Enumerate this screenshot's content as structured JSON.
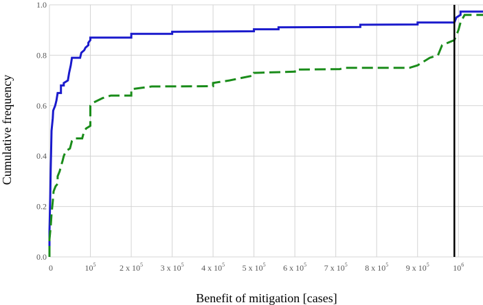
{
  "chart_data": {
    "type": "line",
    "title": "",
    "xlabel": "Benefit of mitigation [cases]",
    "ylabel": "Cumulative frequency",
    "xlim": [
      0,
      1060000
    ],
    "ylim": [
      0,
      1.0
    ],
    "x_scale": "linear",
    "grid": true,
    "legend": "none",
    "x_ticks": [
      {
        "value": 0,
        "coef": "",
        "base": "0",
        "exp": ""
      },
      {
        "value": 100000,
        "coef": "",
        "base": "10",
        "exp": "5"
      },
      {
        "value": 200000,
        "coef": "2 x ",
        "base": "10",
        "exp": "5"
      },
      {
        "value": 300000,
        "coef": "3 x ",
        "base": "10",
        "exp": "5"
      },
      {
        "value": 400000,
        "coef": "4 x ",
        "base": "10",
        "exp": "5"
      },
      {
        "value": 500000,
        "coef": "5 x ",
        "base": "10",
        "exp": "5"
      },
      {
        "value": 600000,
        "coef": "6 x ",
        "base": "10",
        "exp": "5"
      },
      {
        "value": 700000,
        "coef": "7 x ",
        "base": "10",
        "exp": "5"
      },
      {
        "value": 800000,
        "coef": "8 x ",
        "base": "10",
        "exp": "5"
      },
      {
        "value": 900000,
        "coef": "9 x ",
        "base": "10",
        "exp": "5"
      },
      {
        "value": 1000000,
        "coef": "",
        "base": "10",
        "exp": "6"
      }
    ],
    "y_ticks": [
      {
        "value": 0.0,
        "label": "0.0"
      },
      {
        "value": 0.2,
        "label": "0.2"
      },
      {
        "value": 0.4,
        "label": "0.4"
      },
      {
        "value": 0.6,
        "label": "0.6"
      },
      {
        "value": 0.8,
        "label": "0.8"
      },
      {
        "value": 1.0,
        "label": "1.0"
      }
    ],
    "vline": {
      "x": 990000,
      "color": "#000000"
    },
    "series": [
      {
        "color": "#1a1acc",
        "style": "solid",
        "points": [
          [
            0,
            0.0
          ],
          [
            0,
            0.1
          ],
          [
            2000,
            0.25
          ],
          [
            3000,
            0.35
          ],
          [
            4000,
            0.42
          ],
          [
            5000,
            0.5
          ],
          [
            8000,
            0.55
          ],
          [
            9000,
            0.58
          ],
          [
            14000,
            0.6
          ],
          [
            17000,
            0.62
          ],
          [
            20000,
            0.65
          ],
          [
            28000,
            0.65
          ],
          [
            28000,
            0.68
          ],
          [
            35000,
            0.68
          ],
          [
            35000,
            0.69
          ],
          [
            45000,
            0.7
          ],
          [
            48000,
            0.73
          ],
          [
            52000,
            0.76
          ],
          [
            55000,
            0.79
          ],
          [
            75000,
            0.79
          ],
          [
            78000,
            0.81
          ],
          [
            85000,
            0.82
          ],
          [
            88000,
            0.83
          ],
          [
            95000,
            0.84
          ],
          [
            95000,
            0.85
          ],
          [
            100000,
            0.86
          ],
          [
            100000,
            0.87
          ],
          [
            200000,
            0.87
          ],
          [
            200000,
            0.885
          ],
          [
            300000,
            0.885
          ],
          [
            300000,
            0.893
          ],
          [
            500000,
            0.895
          ],
          [
            500000,
            0.903
          ],
          [
            560000,
            0.903
          ],
          [
            560000,
            0.911
          ],
          [
            760000,
            0.912
          ],
          [
            760000,
            0.921
          ],
          [
            900000,
            0.922
          ],
          [
            900000,
            0.93
          ],
          [
            990000,
            0.93
          ],
          [
            995000,
            0.95
          ],
          [
            1005000,
            0.96
          ],
          [
            1005000,
            0.973
          ],
          [
            1060000,
            0.973
          ]
        ]
      },
      {
        "color": "#1a8c1a",
        "style": "dashed",
        "points": [
          [
            0,
            0.0
          ],
          [
            0,
            0.07
          ],
          [
            3000,
            0.12
          ],
          [
            5000,
            0.17
          ],
          [
            8000,
            0.22
          ],
          [
            10000,
            0.26
          ],
          [
            15000,
            0.28
          ],
          [
            20000,
            0.29
          ],
          [
            20000,
            0.32
          ],
          [
            25000,
            0.34
          ],
          [
            28000,
            0.36
          ],
          [
            32000,
            0.38
          ],
          [
            35000,
            0.4
          ],
          [
            40000,
            0.42
          ],
          [
            50000,
            0.43
          ],
          [
            55000,
            0.46
          ],
          [
            60000,
            0.47
          ],
          [
            80000,
            0.47
          ],
          [
            85000,
            0.5
          ],
          [
            90000,
            0.51
          ],
          [
            100000,
            0.52
          ],
          [
            100000,
            0.6
          ],
          [
            105000,
            0.61
          ],
          [
            130000,
            0.63
          ],
          [
            150000,
            0.64
          ],
          [
            200000,
            0.64
          ],
          [
            200000,
            0.665
          ],
          [
            250000,
            0.676
          ],
          [
            400000,
            0.677
          ],
          [
            400000,
            0.69
          ],
          [
            440000,
            0.7
          ],
          [
            470000,
            0.71
          ],
          [
            500000,
            0.72
          ],
          [
            500000,
            0.73
          ],
          [
            600000,
            0.735
          ],
          [
            600000,
            0.743
          ],
          [
            710000,
            0.745
          ],
          [
            720000,
            0.75
          ],
          [
            880000,
            0.75
          ],
          [
            900000,
            0.76
          ],
          [
            910000,
            0.77
          ],
          [
            930000,
            0.79
          ],
          [
            950000,
            0.8
          ],
          [
            960000,
            0.84
          ],
          [
            990000,
            0.86
          ],
          [
            995000,
            0.88
          ],
          [
            1000000,
            0.9
          ],
          [
            1005000,
            0.93
          ],
          [
            1015000,
            0.96
          ],
          [
            1060000,
            0.96
          ]
        ]
      }
    ]
  }
}
